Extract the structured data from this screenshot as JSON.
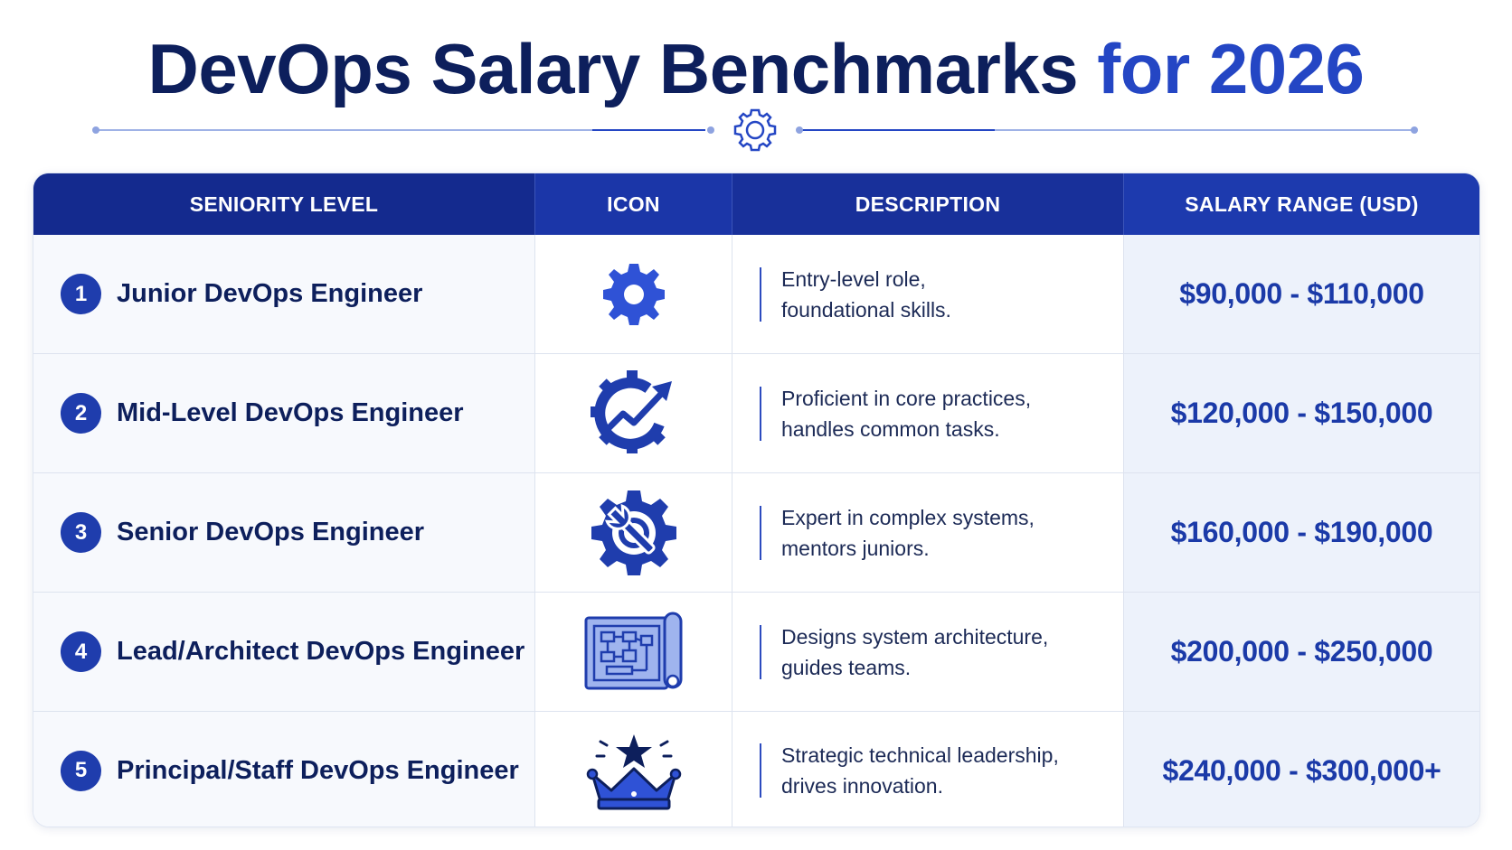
{
  "title": {
    "main": "DevOps Salary Benchmarks",
    "accent": "for 2026"
  },
  "colors": {
    "navy": "#0d1f5c",
    "brand_blue": "#2446c4",
    "header_bg": "#18309a",
    "salary_col_bg": "#edf2fb"
  },
  "table": {
    "headers": {
      "level": "SENIORITY LEVEL",
      "icon": "ICON",
      "description": "DESCRIPTION",
      "salary": "SALARY RANGE (USD)"
    },
    "rows": [
      {
        "number": "1",
        "level": "Junior DevOps Engineer",
        "icon": "gear-icon",
        "desc_line1": "Entry-level role,",
        "desc_line2": "foundational skills.",
        "salary": "$90,000 - $110,000"
      },
      {
        "number": "2",
        "level": "Mid-Level DevOps Engineer",
        "icon": "gear-growth-arrow-icon",
        "desc_line1": "Proficient in core practices,",
        "desc_line2": "handles common tasks.",
        "salary": "$120,000 - $150,000"
      },
      {
        "number": "3",
        "level": "Senior DevOps Engineer",
        "icon": "gear-wrench-icon",
        "desc_line1": "Expert in complex systems,",
        "desc_line2": "mentors juniors.",
        "salary": "$160,000 - $190,000"
      },
      {
        "number": "4",
        "level": "Lead/Architect DevOps Engineer",
        "icon": "blueprint-icon",
        "desc_line1": "Designs system architecture,",
        "desc_line2": "guides teams.",
        "salary": "$200,000 - $250,000"
      },
      {
        "number": "5",
        "level": "Principal/Staff DevOps Engineer",
        "icon": "crown-star-icon",
        "desc_line1": "Strategic technical leadership,",
        "desc_line2": "drives innovation.",
        "salary": "$240,000 - $300,000+"
      }
    ]
  }
}
